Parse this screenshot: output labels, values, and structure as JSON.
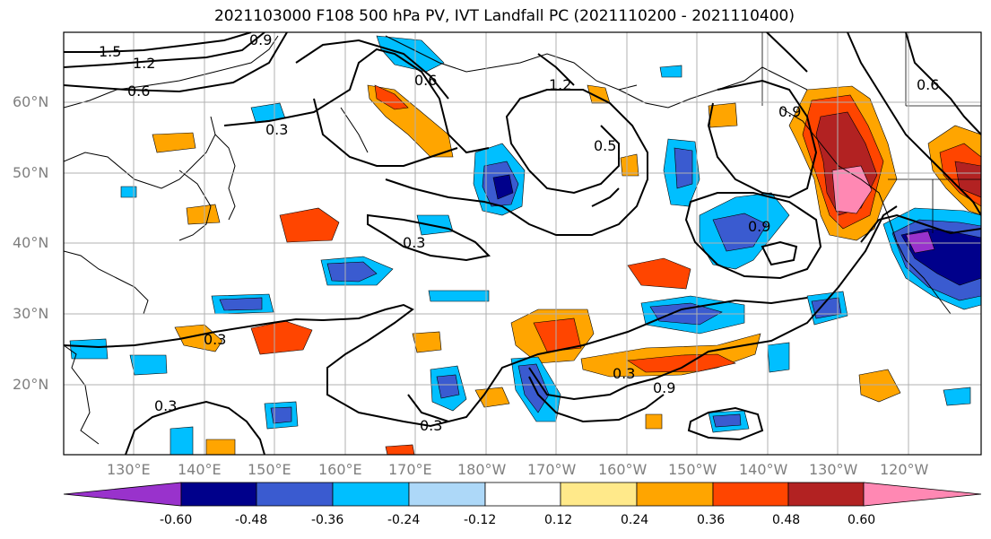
{
  "title": "2021103000 F108 500 hPa PV, IVT Landfall PC (2021110200 - 2021110400)",
  "lat_ticks": [
    "60°N",
    "50°N",
    "40°N",
    "30°N",
    "20°N"
  ],
  "lon_ticks": [
    "130°E",
    "140°E",
    "150°E",
    "160°E",
    "170°E",
    "180°W",
    "170°W",
    "160°W",
    "150°W",
    "140°W",
    "130°W",
    "120°W"
  ],
  "contour_labels": [
    "1.5",
    "1.2",
    "0.6",
    "0.3",
    "0.9",
    "0.3",
    "0.3",
    "0.3",
    "0.3",
    "0.3",
    "0.6",
    "0.9",
    "1.2",
    "0.6",
    "0.9",
    "0.5",
    "0.9"
  ],
  "colorbar": {
    "ticks": [
      "-0.60",
      "-0.48",
      "-0.36",
      "-0.24",
      "-0.12",
      "0.12",
      "0.24",
      "0.36",
      "0.48",
      "0.60"
    ],
    "colors": [
      "#9932cc",
      "#00008b",
      "#3a5bd0",
      "#00bfff",
      "#add8f8",
      "#ffffff",
      "#ffe98a",
      "#ffa500",
      "#ff4500",
      "#b22222",
      "#ff88b3"
    ]
  }
}
